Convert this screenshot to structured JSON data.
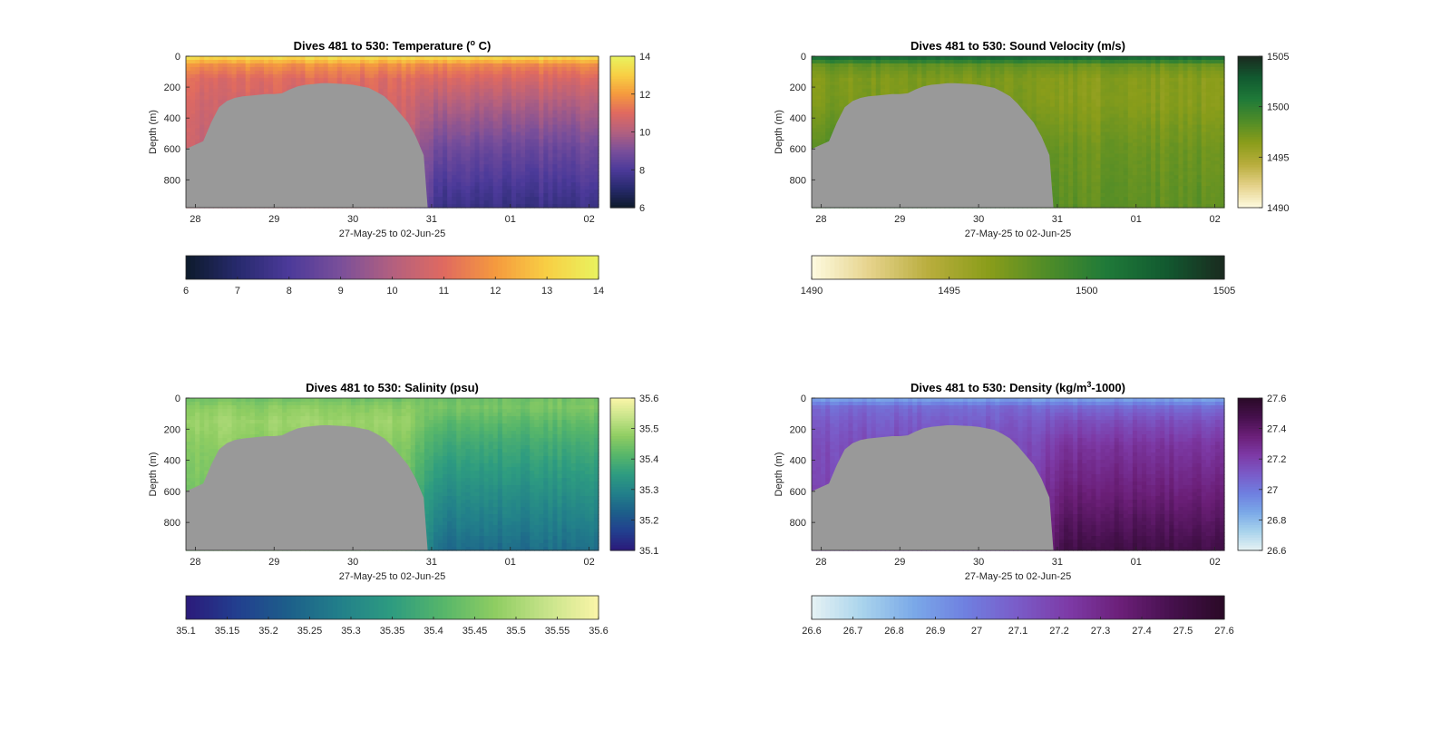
{
  "chart_data": [
    {
      "type": "heatmap",
      "variable": "temperature",
      "title": "Dives 481 to 530: Temperature (",
      "title_sup": "o",
      "title_tail": " C)",
      "xlabel": "27-May-25 to 02-Jun-25",
      "ylabel": "Depth (m)",
      "x_tick_labels": [
        "28",
        "29",
        "30",
        "31",
        "01",
        "02"
      ],
      "x_tick_days": [
        0,
        1,
        2,
        3,
        4,
        5
      ],
      "xlim_days": [
        -0.12,
        5.12
      ],
      "y_ticks": [
        0,
        200,
        400,
        600,
        800
      ],
      "ylim": [
        0,
        980
      ],
      "clim": [
        6,
        14
      ],
      "side_colorbar_ticks": [
        "14",
        "12",
        "10",
        "8",
        "6"
      ],
      "side_colorbar_values": [
        14,
        12,
        10,
        8,
        6
      ],
      "bottom_colorbar_ticks": [
        "6",
        "7",
        "8",
        "9",
        "10",
        "11",
        "12",
        "13",
        "14"
      ],
      "bottom_colorbar_values": [
        6,
        7,
        8,
        9,
        10,
        11,
        12,
        13,
        14
      ],
      "colormap": [
        "#0d1a2b",
        "#272a6d",
        "#4c3a9a",
        "#7a4f9a",
        "#b3607f",
        "#e06a60",
        "#f59a3e",
        "#f8cf44",
        "#e9f35f"
      ],
      "profile_points_depth": [
        0,
        60,
        150,
        300,
        600,
        980
      ],
      "profile_shelf": [
        13.5,
        11.8,
        11.0,
        10.7,
        10.4,
        10.3
      ],
      "profile_offshore": [
        13.5,
        11.6,
        10.8,
        10.0,
        8.7,
        7.5
      ]
    },
    {
      "type": "heatmap",
      "variable": "sound_velocity",
      "title": "Dives 481 to 530: Sound Velocity (m/s)",
      "title_sup": "",
      "title_tail": "",
      "xlabel": "27-May-25 to 02-Jun-25",
      "ylabel": "Depth (m)",
      "x_tick_labels": [
        "28",
        "29",
        "30",
        "31",
        "01",
        "02"
      ],
      "x_tick_days": [
        0,
        1,
        2,
        3,
        4,
        5
      ],
      "xlim_days": [
        -0.12,
        5.12
      ],
      "y_ticks": [
        0,
        200,
        400,
        600,
        800
      ],
      "ylim": [
        0,
        980
      ],
      "clim": [
        1490,
        1505
      ],
      "side_colorbar_ticks": [
        "1505",
        "1500",
        "1495",
        "1490"
      ],
      "side_colorbar_values": [
        1505,
        1500,
        1495,
        1490
      ],
      "bottom_colorbar_ticks": [
        "1490",
        "1495",
        "1500",
        "1505"
      ],
      "bottom_colorbar_values": [
        1490,
        1495,
        1500,
        1505
      ],
      "colormap": [
        "#fefbe0",
        "#e5d28a",
        "#b8ad3c",
        "#8a9d1a",
        "#4f8c28",
        "#1f7a39",
        "#125a30",
        "#1a2a1f"
      ],
      "profile_points_depth": [
        0,
        60,
        150,
        300,
        600,
        980
      ],
      "profile_shelf": [
        1502.5,
        1497.8,
        1496.8,
        1497.0,
        1498.5,
        1500.0
      ],
      "profile_offshore": [
        1502.5,
        1497.5,
        1496.5,
        1496.5,
        1497.5,
        1498.0
      ]
    },
    {
      "type": "heatmap",
      "variable": "salinity",
      "title": "Dives 481 to 530: Salinity (psu)",
      "title_sup": "",
      "title_tail": "",
      "xlabel": "27-May-25 to 02-Jun-25",
      "ylabel": "Depth (m)",
      "x_tick_labels": [
        "28",
        "29",
        "30",
        "31",
        "01",
        "02"
      ],
      "x_tick_days": [
        0,
        1,
        2,
        3,
        4,
        5
      ],
      "xlim_days": [
        -0.12,
        5.12
      ],
      "y_ticks": [
        0,
        200,
        400,
        600,
        800
      ],
      "ylim": [
        0,
        980
      ],
      "clim": [
        35.1,
        35.6
      ],
      "side_colorbar_ticks": [
        "35.6",
        "35.5",
        "35.4",
        "35.3",
        "35.2",
        "35.1"
      ],
      "side_colorbar_values": [
        35.6,
        35.5,
        35.4,
        35.3,
        35.2,
        35.1
      ],
      "bottom_colorbar_ticks": [
        "35.1",
        "35.15",
        "35.2",
        "35.25",
        "35.3",
        "35.35",
        "35.4",
        "35.45",
        "35.5",
        "35.55",
        "35.6"
      ],
      "bottom_colorbar_values": [
        35.1,
        35.15,
        35.2,
        35.25,
        35.3,
        35.35,
        35.4,
        35.45,
        35.5,
        35.55,
        35.6
      ],
      "colormap": [
        "#2b1a7a",
        "#223f8f",
        "#1d5f8a",
        "#22808a",
        "#2e9c80",
        "#57b66a",
        "#8fcd62",
        "#c7e48a",
        "#fbf5a8"
      ],
      "profile_points_depth": [
        0,
        60,
        150,
        300,
        600,
        980
      ],
      "profile_shelf": [
        35.44,
        35.47,
        35.49,
        35.47,
        35.45,
        35.44
      ],
      "profile_offshore": [
        35.44,
        35.45,
        35.42,
        35.38,
        35.32,
        35.25
      ]
    },
    {
      "type": "heatmap",
      "variable": "density",
      "title": "Dives 481 to 530: Density (kg/m",
      "title_sup": "3",
      "title_tail": "-1000)",
      "xlabel": "27-May-25 to 02-Jun-25",
      "ylabel": "Depth (m)",
      "x_tick_labels": [
        "28",
        "29",
        "30",
        "31",
        "01",
        "02"
      ],
      "x_tick_days": [
        0,
        1,
        2,
        3,
        4,
        5
      ],
      "xlim_days": [
        -0.12,
        5.12
      ],
      "y_ticks": [
        0,
        200,
        400,
        600,
        800
      ],
      "ylim": [
        0,
        980
      ],
      "clim": [
        26.6,
        27.6
      ],
      "side_colorbar_ticks": [
        "27.6",
        "27.4",
        "27.2",
        "27",
        "26.8",
        "26.6"
      ],
      "side_colorbar_values": [
        27.6,
        27.4,
        27.2,
        27.0,
        26.8,
        26.6
      ],
      "bottom_colorbar_ticks": [
        "26.6",
        "26.7",
        "26.8",
        "26.9",
        "27",
        "27.1",
        "27.2",
        "27.3",
        "27.4",
        "27.5",
        "27.6"
      ],
      "bottom_colorbar_values": [
        26.6,
        26.7,
        26.8,
        26.9,
        27.0,
        27.1,
        27.2,
        27.3,
        27.4,
        27.5,
        27.6
      ],
      "colormap": [
        "#e6f2f4",
        "#a8d3ec",
        "#7aa8e8",
        "#6f7fe0",
        "#7a5bc8",
        "#7d3aa6",
        "#6b1f78",
        "#45104c",
        "#2a0a26"
      ],
      "profile_points_depth": [
        0,
        60,
        150,
        300,
        600,
        980
      ],
      "profile_shelf": [
        26.85,
        27.05,
        27.1,
        27.15,
        27.18,
        27.2
      ],
      "profile_offshore": [
        26.85,
        27.05,
        27.15,
        27.25,
        27.35,
        27.5
      ]
    }
  ],
  "shared": {
    "seafloor_color": "#999999",
    "seafloor_days": [
      -0.12,
      0.1,
      0.2,
      0.3,
      0.4,
      0.5,
      0.6,
      0.7,
      0.8,
      0.9,
      1.0,
      1.1,
      1.2,
      1.3,
      1.4,
      1.5,
      1.6,
      1.7,
      1.8,
      1.9,
      2.0,
      2.1,
      2.2,
      2.3,
      2.4,
      2.5,
      2.6,
      2.7,
      2.8,
      2.9,
      2.95
    ],
    "seafloor_depth": [
      600,
      550,
      430,
      330,
      290,
      270,
      260,
      255,
      250,
      245,
      245,
      240,
      215,
      195,
      185,
      180,
      175,
      175,
      178,
      180,
      185,
      195,
      205,
      230,
      260,
      310,
      370,
      430,
      520,
      640,
      980
    ]
  }
}
